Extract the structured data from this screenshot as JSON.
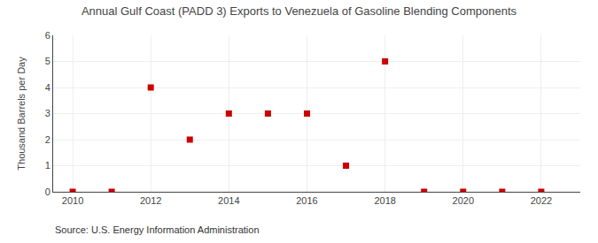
{
  "chart_data": {
    "type": "scatter",
    "title": "Annual Gulf Coast (PADD 3) Exports to Venezuela of Gasoline Blending Components",
    "ylabel": "Thousand Barrels per Day",
    "annotations": [
      "Source: U.S. Energy Information Administration"
    ],
    "x": [
      2010,
      2011,
      2012,
      2013,
      2014,
      2015,
      2016,
      2017,
      2018,
      2019,
      2020,
      2021,
      2022
    ],
    "values": [
      0,
      0,
      4,
      2,
      3,
      3,
      3,
      1,
      5,
      0,
      0,
      0,
      0
    ],
    "color": "#cc0000",
    "marker": "square",
    "xlim": [
      2009.5,
      2023.0
    ],
    "xticks": [
      2010,
      2012,
      2014,
      2016,
      2018,
      2020,
      2022
    ],
    "ylim": [
      0,
      6
    ],
    "yticks": [
      0,
      1,
      2,
      3,
      4,
      5,
      6
    ],
    "grid": true
  }
}
